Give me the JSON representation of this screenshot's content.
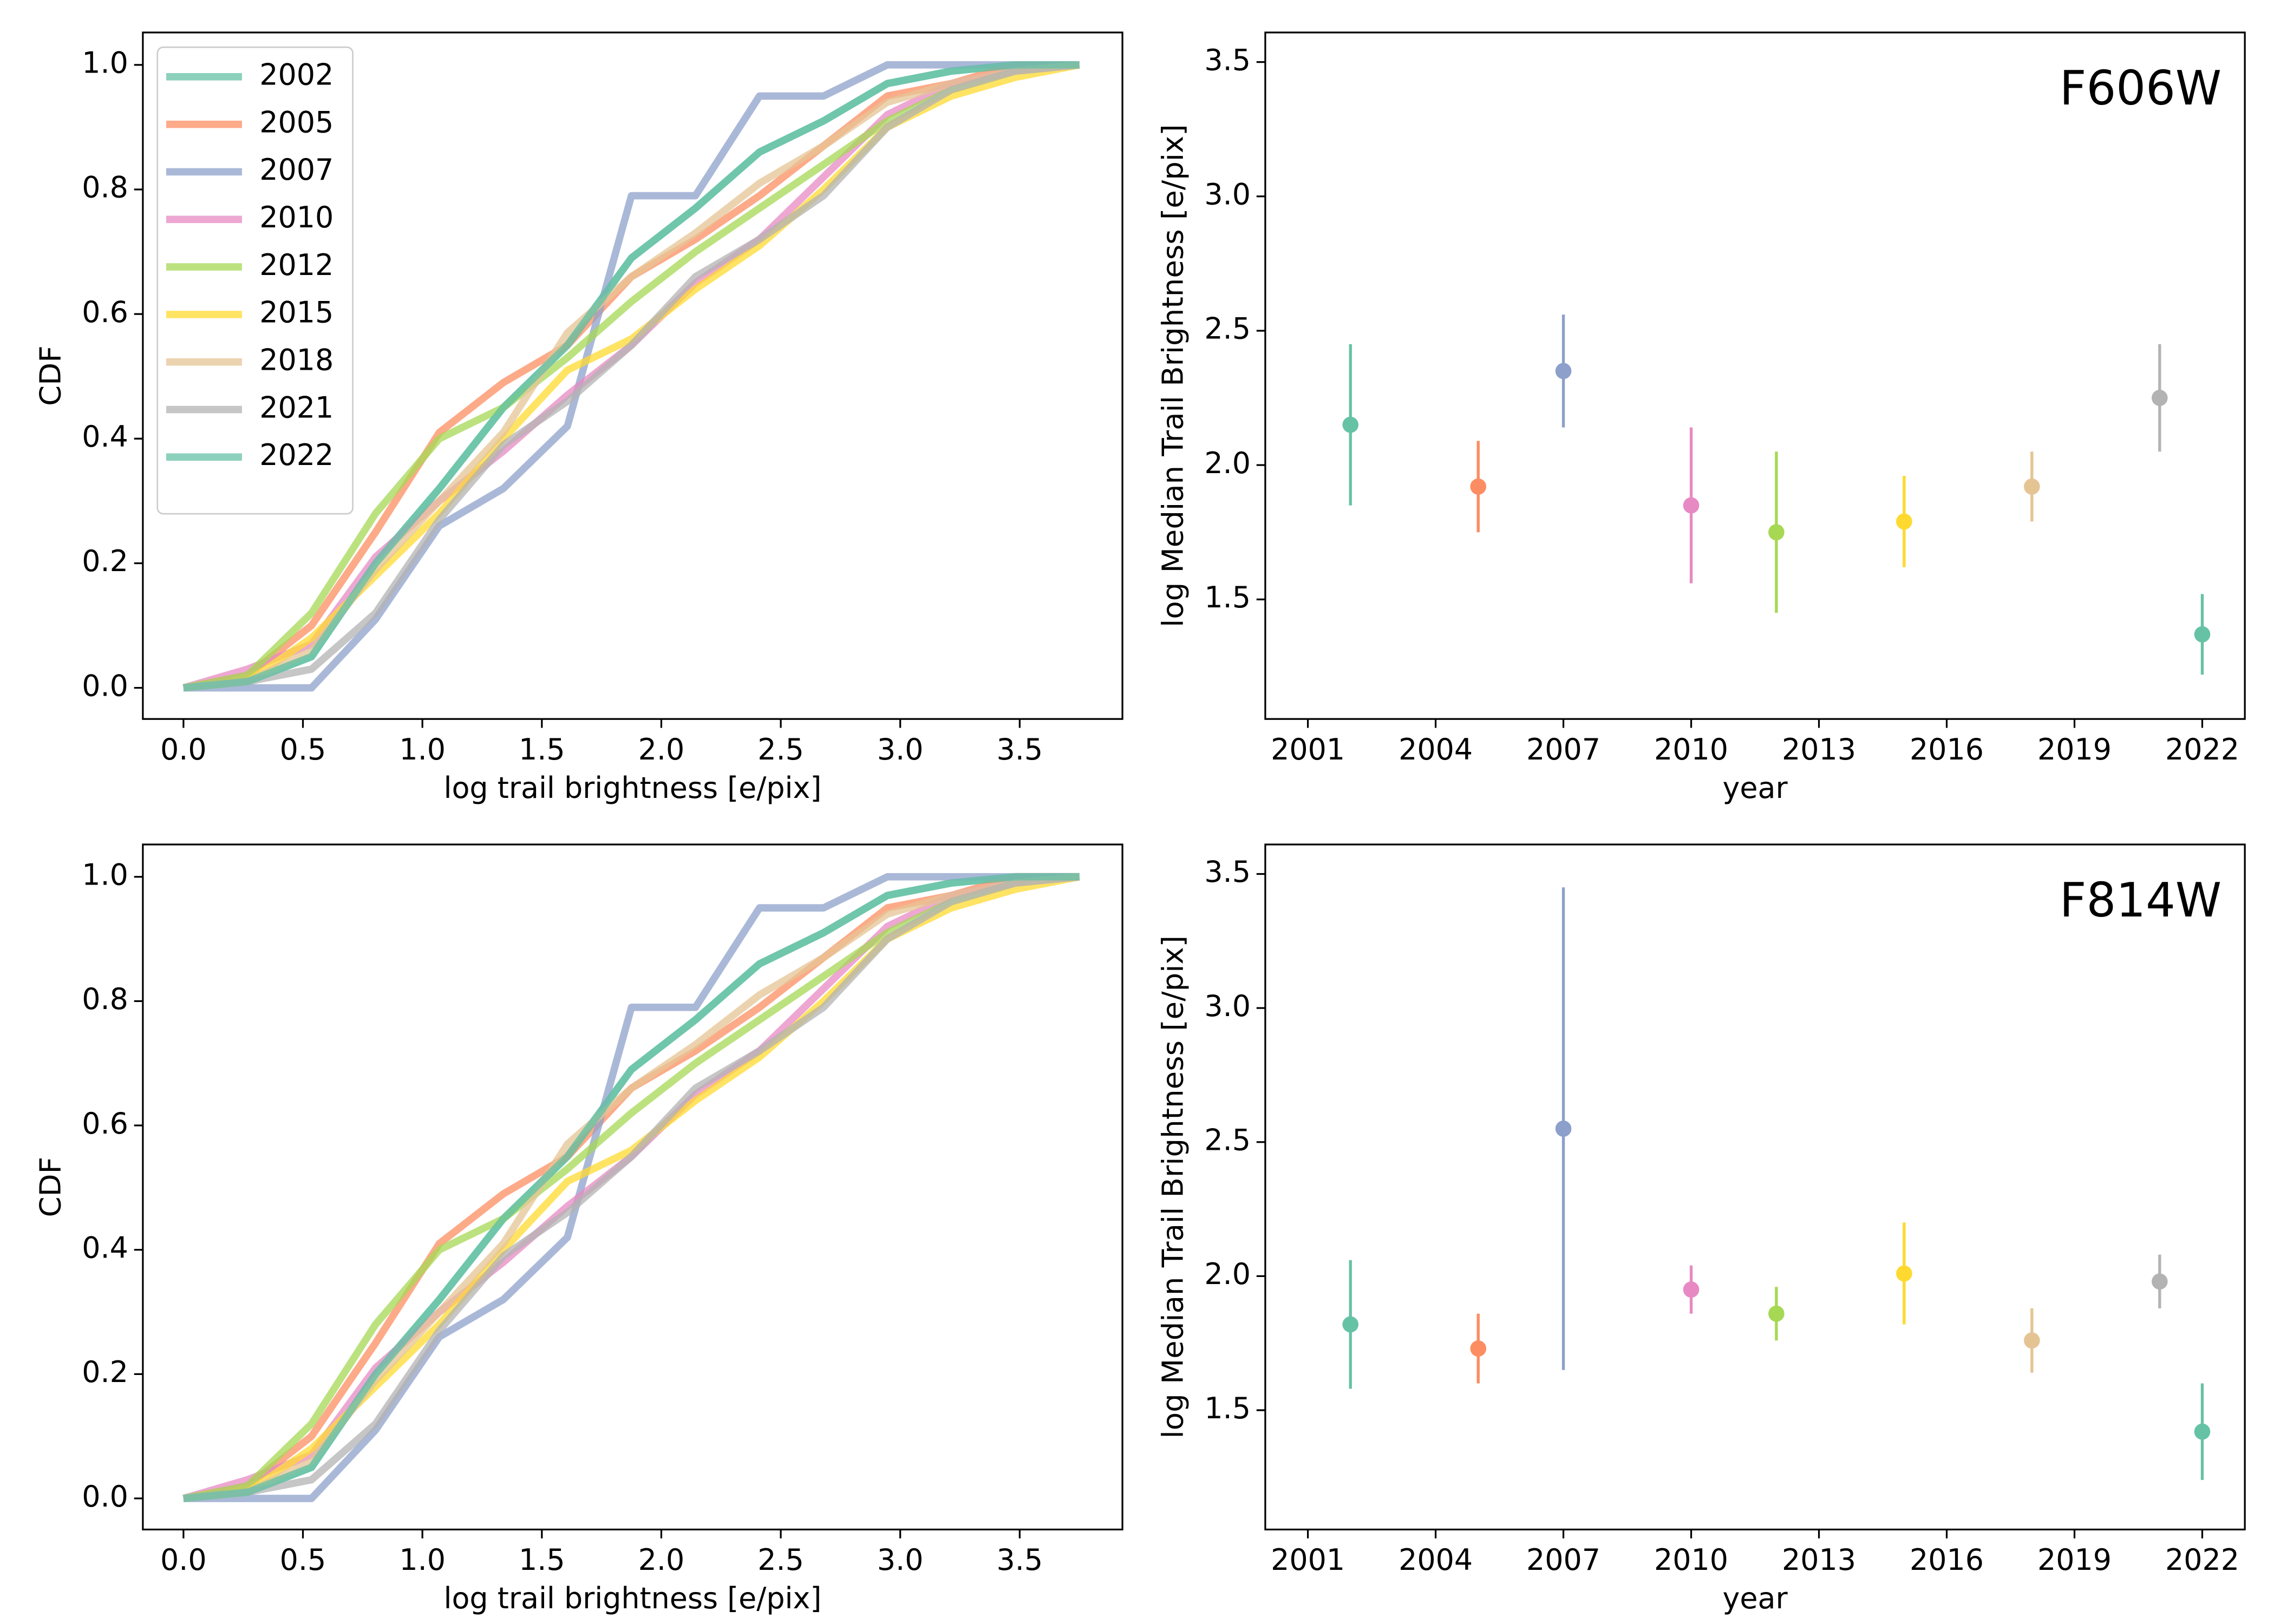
{
  "chart_data": [
    {
      "type": "line",
      "xlabel": "log trail brightness [e/pix]",
      "ylabel": "CDF",
      "legend": "upper left",
      "x": [
        0,
        0.268,
        0.536,
        0.804,
        1.071,
        1.339,
        1.607,
        1.875,
        2.143,
        2.411,
        2.679,
        2.946,
        3.214,
        3.482,
        3.75
      ],
      "xlim": [
        -0.17,
        3.93
      ],
      "ylim": [
        -0.05,
        1.052
      ],
      "xticks": [
        {
          "value": 0,
          "label": "0.0"
        },
        0.5,
        {
          "value": 1,
          "label": "1.0"
        },
        1.5,
        {
          "value": 2,
          "label": "2.0"
        },
        2.5,
        {
          "value": 3,
          "label": "3.0"
        },
        3.5
      ],
      "yticks": [
        {
          "value": 0,
          "label": "0.0"
        },
        0.2,
        0.4,
        0.6,
        0.8,
        {
          "value": 1,
          "label": "1.0"
        }
      ],
      "series": [
        {
          "name": "2002",
          "color": "#66c2a5",
          "values": [
            0,
            0.01,
            0.05,
            0.2,
            0.32,
            0.45,
            0.55,
            0.69,
            0.77,
            0.86,
            0.91,
            0.97,
            0.99,
            1.0,
            1.0
          ]
        },
        {
          "name": "2005",
          "color": "#fc8d62",
          "values": [
            0,
            0.02,
            0.1,
            0.25,
            0.41,
            0.49,
            0.55,
            0.66,
            0.72,
            0.79,
            0.87,
            0.95,
            0.97,
            1.0,
            1.0
          ]
        },
        {
          "name": "2007",
          "color": "#8da0cb",
          "values": [
            0,
            0,
            0,
            0.11,
            0.26,
            0.32,
            0.42,
            0.79,
            0.79,
            0.95,
            0.95,
            1.0,
            1.0,
            1.0,
            1.0
          ]
        },
        {
          "name": "2010",
          "color": "#e78ac3",
          "values": [
            0,
            0.03,
            0.07,
            0.21,
            0.3,
            0.38,
            0.47,
            0.55,
            0.65,
            0.72,
            0.82,
            0.92,
            0.97,
            0.99,
            1.0
          ]
        },
        {
          "name": "2012",
          "color": "#a6d854",
          "values": [
            0,
            0.02,
            0.12,
            0.28,
            0.4,
            0.45,
            0.53,
            0.62,
            0.7,
            0.77,
            0.84,
            0.91,
            0.96,
            0.99,
            1.0
          ]
        },
        {
          "name": "2015",
          "color": "#ffd92f",
          "values": [
            0,
            0.01,
            0.08,
            0.18,
            0.28,
            0.4,
            0.51,
            0.56,
            0.64,
            0.71,
            0.8,
            0.9,
            0.95,
            0.98,
            1.0
          ]
        },
        {
          "name": "2018",
          "color": "#e5c494",
          "values": [
            0,
            0.01,
            0.06,
            0.19,
            0.3,
            0.41,
            0.57,
            0.66,
            0.73,
            0.81,
            0.87,
            0.94,
            0.97,
            0.99,
            1.0
          ]
        },
        {
          "name": "2021",
          "color": "#b3b3b3",
          "values": [
            0,
            0.01,
            0.03,
            0.12,
            0.27,
            0.39,
            0.46,
            0.55,
            0.66,
            0.72,
            0.79,
            0.9,
            0.96,
            0.99,
            1.0
          ]
        },
        {
          "name": "2022",
          "color": "#66c2a5",
          "values": [
            0,
            0.01,
            0.05,
            0.2,
            0.32,
            0.45,
            0.55,
            0.69,
            0.77,
            0.86,
            0.91,
            0.97,
            0.99,
            1.0,
            1.0
          ]
        }
      ]
    },
    {
      "type": "errorbar",
      "xlabel": "year",
      "ylabel": "log Median Trail Brightness [e/pix]",
      "annotation": "F606W",
      "x": [
        2002,
        2005,
        2007,
        2010,
        2012,
        2015,
        2018,
        2021,
        2022
      ],
      "values": [
        2.15,
        1.92,
        2.35,
        1.85,
        1.75,
        1.79,
        1.92,
        2.25,
        1.37
      ],
      "errors": [
        0.3,
        0.17,
        0.21,
        0.29,
        0.3,
        0.17,
        0.13,
        0.2,
        0.15
      ],
      "colors": [
        "#66c2a5",
        "#fc8d62",
        "#8da0cb",
        "#e78ac3",
        "#a6d854",
        "#ffd92f",
        "#e5c494",
        "#b3b3b3",
        "#66c2a5"
      ],
      "xlim": [
        2000,
        2023
      ],
      "ylim": [
        1.055,
        3.61
      ],
      "xticks": [
        2001,
        2004,
        2007,
        2010,
        2013,
        2016,
        2019,
        2022
      ],
      "yticks": [
        1.5,
        {
          "value": 2,
          "label": "2.0"
        },
        2.5,
        {
          "value": 3,
          "label": "3.0"
        },
        3.5
      ]
    },
    {
      "type": "line",
      "xlabel": "log trail brightness [e/pix]",
      "ylabel": "CDF",
      "x": [
        0,
        0.268,
        0.536,
        0.804,
        1.071,
        1.339,
        1.607,
        1.875,
        2.143,
        2.411,
        2.679,
        2.946,
        3.214,
        3.482,
        3.75
      ],
      "xlim": [
        -0.17,
        3.93
      ],
      "ylim": [
        -0.05,
        1.052
      ],
      "xticks": [
        {
          "value": 0,
          "label": "0.0"
        },
        0.5,
        {
          "value": 1,
          "label": "1.0"
        },
        1.5,
        {
          "value": 2,
          "label": "2.0"
        },
        2.5,
        {
          "value": 3,
          "label": "3.0"
        },
        3.5
      ],
      "yticks": [
        {
          "value": 0,
          "label": "0.0"
        },
        0.2,
        0.4,
        0.6,
        0.8,
        {
          "value": 1,
          "label": "1.0"
        }
      ],
      "series": [
        {
          "color": "#66c2a5",
          "values": [
            0,
            0.01,
            0.05,
            0.2,
            0.32,
            0.45,
            0.55,
            0.69,
            0.77,
            0.86,
            0.91,
            0.97,
            0.99,
            1.0,
            1.0
          ]
        },
        {
          "color": "#fc8d62",
          "values": [
            0,
            0.02,
            0.1,
            0.25,
            0.41,
            0.49,
            0.55,
            0.66,
            0.72,
            0.79,
            0.87,
            0.95,
            0.97,
            1.0,
            1.0
          ]
        },
        {
          "color": "#8da0cb",
          "values": [
            0,
            0,
            0,
            0.11,
            0.26,
            0.32,
            0.42,
            0.79,
            0.79,
            0.95,
            0.95,
            1.0,
            1.0,
            1.0,
            1.0
          ]
        },
        {
          "color": "#e78ac3",
          "values": [
            0,
            0.03,
            0.07,
            0.21,
            0.3,
            0.38,
            0.47,
            0.55,
            0.65,
            0.72,
            0.82,
            0.92,
            0.97,
            0.99,
            1.0
          ]
        },
        {
          "color": "#a6d854",
          "values": [
            0,
            0.02,
            0.12,
            0.28,
            0.4,
            0.45,
            0.53,
            0.62,
            0.7,
            0.77,
            0.84,
            0.91,
            0.96,
            0.99,
            1.0
          ]
        },
        {
          "color": "#ffd92f",
          "values": [
            0,
            0.01,
            0.08,
            0.18,
            0.28,
            0.4,
            0.51,
            0.56,
            0.64,
            0.71,
            0.8,
            0.9,
            0.95,
            0.98,
            1.0
          ]
        },
        {
          "color": "#e5c494",
          "values": [
            0,
            0.01,
            0.06,
            0.19,
            0.3,
            0.41,
            0.57,
            0.66,
            0.73,
            0.81,
            0.87,
            0.94,
            0.97,
            0.99,
            1.0
          ]
        },
        {
          "color": "#b3b3b3",
          "values": [
            0,
            0.01,
            0.03,
            0.12,
            0.27,
            0.39,
            0.46,
            0.55,
            0.66,
            0.72,
            0.79,
            0.9,
            0.96,
            0.99,
            1.0
          ]
        },
        {
          "color": "#66c2a5",
          "values": [
            0,
            0.01,
            0.05,
            0.2,
            0.32,
            0.45,
            0.55,
            0.69,
            0.77,
            0.86,
            0.91,
            0.97,
            0.99,
            1.0,
            1.0
          ]
        }
      ]
    },
    {
      "type": "errorbar",
      "xlabel": "year",
      "ylabel": "log Median Trail Brightness [e/pix]",
      "annotation": "F814W",
      "x": [
        2002,
        2005,
        2007,
        2010,
        2012,
        2015,
        2018,
        2021,
        2022
      ],
      "values": [
        1.82,
        1.73,
        2.55,
        1.95,
        1.86,
        2.01,
        1.76,
        1.98,
        1.42
      ],
      "errors": [
        0.24,
        0.13,
        0.9,
        0.09,
        0.1,
        0.19,
        0.12,
        0.1,
        0.18
      ],
      "colors": [
        "#66c2a5",
        "#fc8d62",
        "#8da0cb",
        "#e78ac3",
        "#a6d854",
        "#ffd92f",
        "#e5c494",
        "#b3b3b3",
        "#66c2a5"
      ],
      "xlim": [
        2000,
        2023
      ],
      "ylim": [
        1.055,
        3.61
      ],
      "xticks": [
        2001,
        2004,
        2007,
        2010,
        2013,
        2016,
        2019,
        2022
      ],
      "yticks": [
        1.5,
        {
          "value": 2,
          "label": "2.0"
        },
        2.5,
        {
          "value": 3,
          "label": "3.0"
        },
        3.5
      ]
    }
  ]
}
